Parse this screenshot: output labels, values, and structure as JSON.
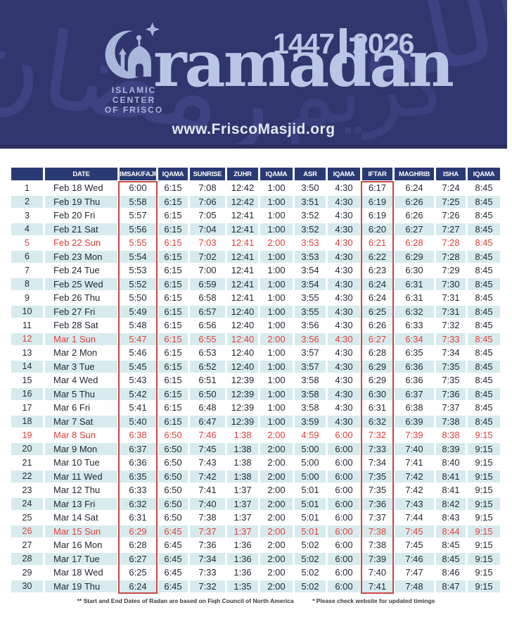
{
  "banner": {
    "org_name": {
      "line1": "ISLAMIC",
      "line2": "CENTER",
      "line3": "OF FRISCO"
    },
    "hijri_year": "1447",
    "gregorian_year": "2026",
    "title": "ramadan",
    "website": "www.FriscoMasjid.org",
    "watermark_glyphs": {
      "g1": "الله",
      "g2": "رمضان",
      "g3": "كريم"
    }
  },
  "colors": {
    "banner_bg": "#31366f",
    "accent_periwinkle": "#b9c6e5",
    "table_header_bg": "#2a3a74",
    "row_alt_bg": "#d7ebee",
    "sunday_red": "#e2403b",
    "highlight_box_red": "#c74a45"
  },
  "table": {
    "headers": [
      "",
      "DATE",
      "IMSAK/FAJR",
      "IQAMA",
      "SUNRISE",
      "ZUHR",
      "IQAMA",
      "ASR",
      "IQAMA",
      "IFTAR",
      "MAGHRIB",
      "ISHA",
      "IQAMA"
    ],
    "rows": [
      {
        "day": "1",
        "date": "Feb 18 Wed",
        "sunday": false,
        "times": [
          "6:00",
          "6:15",
          "7:08",
          "12:42",
          "1:00",
          "3:50",
          "4:30",
          "6:17",
          "6:24",
          "7:24",
          "8:45"
        ]
      },
      {
        "day": "2",
        "date": "Feb 19 Thu",
        "sunday": false,
        "times": [
          "5:58",
          "6:15",
          "7:06",
          "12:42",
          "1:00",
          "3:51",
          "4:30",
          "6:19",
          "6:26",
          "7:25",
          "8:45"
        ]
      },
      {
        "day": "3",
        "date": "Feb 20 Fri",
        "sunday": false,
        "times": [
          "5:57",
          "6:15",
          "7:05",
          "12:41",
          "1:00",
          "3:52",
          "4:30",
          "6:19",
          "6:26",
          "7:26",
          "8:45"
        ]
      },
      {
        "day": "4",
        "date": "Feb 21 Sat",
        "sunday": false,
        "times": [
          "5:56",
          "6:15",
          "7:04",
          "12:41",
          "1:00",
          "3:52",
          "4:30",
          "6:20",
          "6:27",
          "7:27",
          "8:45"
        ]
      },
      {
        "day": "5",
        "date": "Feb 22 Sun",
        "sunday": true,
        "times": [
          "5:55",
          "6:15",
          "7:03",
          "12:41",
          "2:00",
          "3:53",
          "4:30",
          "6:21",
          "6:28",
          "7:28",
          "8:45"
        ]
      },
      {
        "day": "6",
        "date": "Feb 23 Mon",
        "sunday": false,
        "times": [
          "5:54",
          "6:15",
          "7:02",
          "12:41",
          "1:00",
          "3:53",
          "4:30",
          "6:22",
          "6:29",
          "7:28",
          "8:45"
        ]
      },
      {
        "day": "7",
        "date": "Feb 24 Tue",
        "sunday": false,
        "times": [
          "5:53",
          "6:15",
          "7:00",
          "12:41",
          "1:00",
          "3:54",
          "4:30",
          "6:23",
          "6:30",
          "7:29",
          "8:45"
        ]
      },
      {
        "day": "8",
        "date": "Feb 25 Wed",
        "sunday": false,
        "times": [
          "5:52",
          "6:15",
          "6:59",
          "12:41",
          "1:00",
          "3:54",
          "4:30",
          "6:24",
          "6:31",
          "7:30",
          "8:45"
        ]
      },
      {
        "day": "9",
        "date": "Feb 26 Thu",
        "sunday": false,
        "times": [
          "5:50",
          "6:15",
          "6:58",
          "12:41",
          "1:00",
          "3:55",
          "4:30",
          "6:24",
          "6:31",
          "7:31",
          "8:45"
        ]
      },
      {
        "day": "10",
        "date": "Feb 27 Fri",
        "sunday": false,
        "times": [
          "5:49",
          "6:15",
          "6:57",
          "12:40",
          "1:00",
          "3:55",
          "4:30",
          "6:25",
          "6:32",
          "7:31",
          "8:45"
        ]
      },
      {
        "day": "11",
        "date": "Feb 28 Sat",
        "sunday": false,
        "times": [
          "5:48",
          "6:15",
          "6:56",
          "12:40",
          "1:00",
          "3:56",
          "4:30",
          "6:26",
          "6:33",
          "7:32",
          "8:45"
        ]
      },
      {
        "day": "12",
        "date": "Mar 1 Sun",
        "sunday": true,
        "times": [
          "5:47",
          "6:15",
          "6:55",
          "12:40",
          "2:00",
          "3:56",
          "4:30",
          "6:27",
          "6:34",
          "7:33",
          "8:45"
        ]
      },
      {
        "day": "13",
        "date": "Mar 2 Mon",
        "sunday": false,
        "times": [
          "5:46",
          "6:15",
          "6:53",
          "12:40",
          "1:00",
          "3:57",
          "4:30",
          "6:28",
          "6:35",
          "7:34",
          "8:45"
        ]
      },
      {
        "day": "14",
        "date": "Mar 3 Tue",
        "sunday": false,
        "times": [
          "5:45",
          "6:15",
          "6:52",
          "12:40",
          "1:00",
          "3:57",
          "4:30",
          "6:29",
          "6:36",
          "7:35",
          "8:45"
        ]
      },
      {
        "day": "15",
        "date": "Mar 4 Wed",
        "sunday": false,
        "times": [
          "5:43",
          "6:15",
          "6:51",
          "12:39",
          "1:00",
          "3:58",
          "4:30",
          "6:29",
          "6:36",
          "7:35",
          "8:45"
        ]
      },
      {
        "day": "16",
        "date": "Mar 5 Thu",
        "sunday": false,
        "times": [
          "5:42",
          "6:15",
          "6:50",
          "12:39",
          "1:00",
          "3:58",
          "4:30",
          "6:30",
          "6:37",
          "7:36",
          "8:45"
        ]
      },
      {
        "day": "17",
        "date": "Mar 6 Fri",
        "sunday": false,
        "times": [
          "5:41",
          "6:15",
          "6:48",
          "12:39",
          "1:00",
          "3:58",
          "4:30",
          "6:31",
          "6:38",
          "7:37",
          "8:45"
        ]
      },
      {
        "day": "18",
        "date": "Mar 7 Sat",
        "sunday": false,
        "times": [
          "5:40",
          "6:15",
          "6:47",
          "12:39",
          "1:00",
          "3:59",
          "4:30",
          "6:32",
          "6:39",
          "7:38",
          "8:45"
        ]
      },
      {
        "day": "19",
        "date": "Mar 8 Sun",
        "sunday": true,
        "times": [
          "6:38",
          "6:50",
          "7:46",
          "1:38",
          "2:00",
          "4:59",
          "6:00",
          "7:32",
          "7:39",
          "8:38",
          "9:15"
        ]
      },
      {
        "day": "20",
        "date": "Mar 9 Mon",
        "sunday": false,
        "times": [
          "6:37",
          "6:50",
          "7:45",
          "1:38",
          "2:00",
          "5:00",
          "6:00",
          "7:33",
          "7:40",
          "8:39",
          "9:15"
        ]
      },
      {
        "day": "21",
        "date": "Mar 10 Tue",
        "sunday": false,
        "times": [
          "6:36",
          "6:50",
          "7:43",
          "1:38",
          "2:00",
          "5:00",
          "6:00",
          "7:34",
          "7:41",
          "8:40",
          "9:15"
        ]
      },
      {
        "day": "22",
        "date": "Mar 11 Wed",
        "sunday": false,
        "times": [
          "6:35",
          "6:50",
          "7:42",
          "1:38",
          "2:00",
          "5:00",
          "6:00",
          "7:35",
          "7:42",
          "8:41",
          "9:15"
        ]
      },
      {
        "day": "23",
        "date": "Mar 12 Thu",
        "sunday": false,
        "times": [
          "6:33",
          "6:50",
          "7:41",
          "1:37",
          "2:00",
          "5:01",
          "6:00",
          "7:35",
          "7:42",
          "8:41",
          "9:15"
        ]
      },
      {
        "day": "24",
        "date": "Mar 13 Fri",
        "sunday": false,
        "times": [
          "6:32",
          "6:50",
          "7:40",
          "1:37",
          "2:00",
          "5:01",
          "6:00",
          "7:36",
          "7:43",
          "8:42",
          "9:15"
        ]
      },
      {
        "day": "25",
        "date": "Mar 14 Sat",
        "sunday": false,
        "times": [
          "6:31",
          "6:50",
          "7:38",
          "1:37",
          "2:00",
          "5:01",
          "6:00",
          "7:37",
          "7:44",
          "8:43",
          "9:15"
        ]
      },
      {
        "day": "26",
        "date": "Mar 15 Sun",
        "sunday": true,
        "times": [
          "6:29",
          "6:45",
          "7:37",
          "1:37",
          "2:00",
          "5:01",
          "6:00",
          "7:38",
          "7:45",
          "8:44",
          "9:15"
        ]
      },
      {
        "day": "27",
        "date": "Mar 16 Mon",
        "sunday": false,
        "times": [
          "6:28",
          "6:45",
          "7:36",
          "1:36",
          "2:00",
          "5:02",
          "6:00",
          "7:38",
          "7:45",
          "8:45",
          "9:15"
        ]
      },
      {
        "day": "28",
        "date": "Mar 17 Tue",
        "sunday": false,
        "times": [
          "6:27",
          "6:45",
          "7:34",
          "1:36",
          "2:00",
          "5:02",
          "6:00",
          "7:39",
          "7:46",
          "8:45",
          "9:15"
        ]
      },
      {
        "day": "29",
        "date": "Mar 18 Wed",
        "sunday": false,
        "times": [
          "6:25",
          "6:45",
          "7:33",
          "1:36",
          "2:00",
          "5:02",
          "6:00",
          "7:40",
          "7:47",
          "8:46",
          "9:15"
        ]
      },
      {
        "day": "30",
        "date": "Mar 19 Thu",
        "sunday": false,
        "times": [
          "6:24",
          "6:45",
          "7:32",
          "1:35",
          "2:00",
          "5:02",
          "6:00",
          "7:41",
          "7:48",
          "8:47",
          "9:15"
        ]
      }
    ]
  },
  "footer": {
    "note1": "** Start and End Dates of Radan are based on Fiqh Council of North America",
    "note2": "* Please check website for updated timings"
  }
}
